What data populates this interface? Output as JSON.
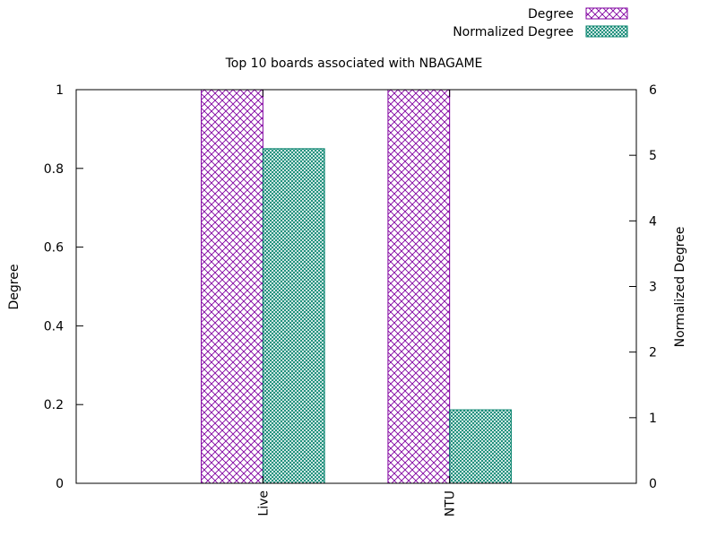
{
  "chart_data": {
    "type": "bar",
    "title": "Top 10 boards associated with NBAGAME",
    "xlabel": "",
    "ylabel": "Degree",
    "y2label": "Normalized Degree",
    "categories": [
      "Live",
      "NTU"
    ],
    "ylim": [
      0,
      1
    ],
    "y2lim": [
      0,
      6
    ],
    "yticks": [
      "0",
      "0.2",
      "0.4",
      "0.6",
      "0.8",
      "1"
    ],
    "y2ticks": [
      "0",
      "1",
      "2",
      "3",
      "4",
      "5",
      "6"
    ],
    "series": [
      {
        "name": "Degree",
        "axis": "left",
        "values": [
          1,
          1
        ],
        "color": "#8000a0",
        "pattern": "crosshatch"
      },
      {
        "name": "Normalized Degree",
        "axis": "right",
        "values": [
          5.1,
          1.12
        ],
        "color": "#00806a",
        "pattern": "fine-crosshatch"
      }
    ],
    "legend_position": "top-right",
    "grid": false
  }
}
